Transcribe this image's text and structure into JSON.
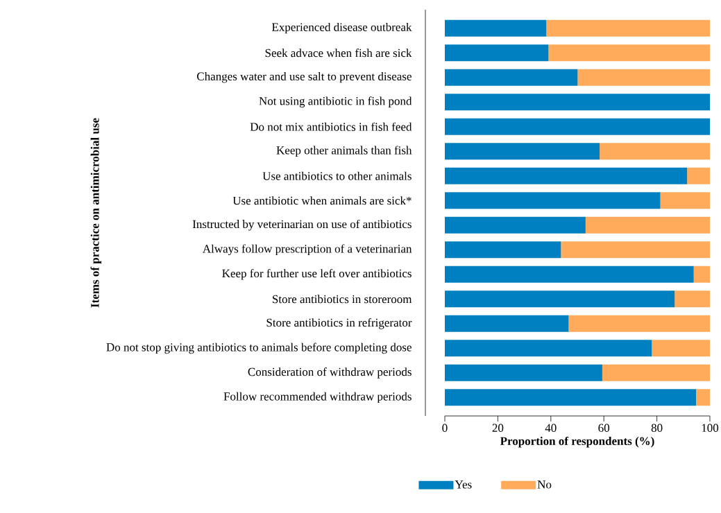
{
  "chart_data": {
    "type": "bar",
    "orientation": "horizontal",
    "stacked": true,
    "xlabel": "Proportion of respondents (%)",
    "ylabel": "Items of practice on antimicrobial use",
    "categories": [
      "Experienced disease outbreak",
      "Seek advace when fish are sick",
      "Changes water and use salt to prevent disease",
      "Not using antibiotic in fish pond",
      "Do not mix antibiotics in fish feed",
      "Keep other animals than fish",
      "Use antibiotics to other animals",
      "Use antibiotic when animals are sick*",
      "Instructed by veterinarian on use of antibiotics",
      "Always follow prescription of a veterinarian",
      "Keep for further use left over antibiotics",
      "Store antibiotics in storeroom",
      "Store antibiotics in refrigerator",
      "Do not stop giving antibiotics to animals before completing dose",
      "Consideration of withdraw periods",
      "Follow recommended withdraw periods"
    ],
    "series": [
      {
        "name": "Yes",
        "color": "#0080c0",
        "values": [
          38.3,
          39.1,
          50.1,
          100,
          100,
          58.4,
          91.4,
          81.3,
          53.1,
          43.8,
          93.9,
          86.7,
          46.7,
          78.1,
          59.4,
          94.8
        ]
      },
      {
        "name": "No",
        "color": "#ffab5b",
        "values": [
          61.7,
          60.9,
          49.9,
          0,
          0,
          41.6,
          8.6,
          18.7,
          46.9,
          56.2,
          6.1,
          13.3,
          53.3,
          21.9,
          40.6,
          5.2
        ]
      }
    ],
    "xlim": [
      0,
      100
    ],
    "xticks": [
      0,
      20,
      40,
      60,
      80,
      100
    ],
    "legend": "bottom",
    "grid": false
  }
}
